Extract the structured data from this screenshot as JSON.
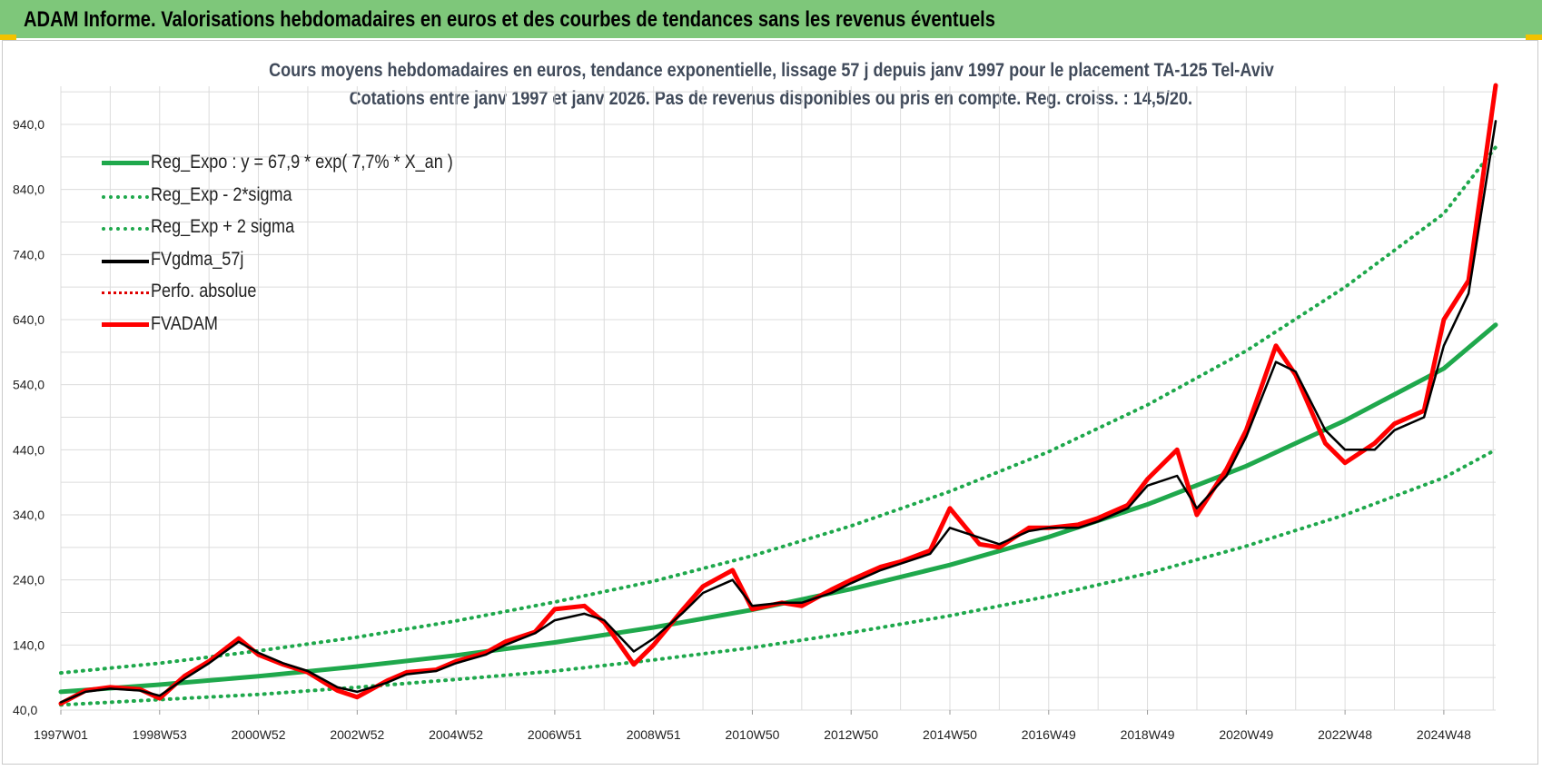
{
  "header": {
    "title": "ADAM Informe. Valorisations hebdomadaires en euros et des courbes de tendances sans les revenus éventuels"
  },
  "colors": {
    "header_bg": "#7ec77a",
    "reg_expo": "#1fa84c",
    "sigma": "#1fa84c",
    "smooth": "#000000",
    "perfo": "#e00000",
    "fvadam": "#ff0000",
    "grid": "#dcdcdc"
  },
  "chart_data": {
    "type": "line",
    "title": "Cours moyens hebdomadaires en euros, tendance exponentielle, lissage 57 j depuis janv 1997  pour le placement TA-125 Tel-Aviv",
    "subtitle": "Cotations entre janv 1997 et janv 2026. Pas de revenus disponibles ou pris en compte. Reg. croiss. : 14,5/20.",
    "xlabel": "",
    "ylabel": "",
    "ylim": [
      40,
      1000
    ],
    "xlim": [
      1997.0,
      2026.05
    ],
    "y_ticks": [
      "40,0",
      "140,0",
      "240,0",
      "340,0",
      "440,0",
      "540,0",
      "640,0",
      "740,0",
      "840,0",
      "940,0"
    ],
    "x_ticks": [
      {
        "label": "1997W01",
        "x": 1997.0
      },
      {
        "label": "1998W53",
        "x": 1999.0
      },
      {
        "label": "2000W52",
        "x": 2001.0
      },
      {
        "label": "2002W52",
        "x": 2003.0
      },
      {
        "label": "2004W52",
        "x": 2005.0
      },
      {
        "label": "2006W51",
        "x": 2007.0
      },
      {
        "label": "2008W51",
        "x": 2009.0
      },
      {
        "label": "2010W50",
        "x": 2011.0
      },
      {
        "label": "2012W50",
        "x": 2013.0
      },
      {
        "label": "2014W50",
        "x": 2015.0
      },
      {
        "label": "2016W49",
        "x": 2017.0
      },
      {
        "label": "2018W49",
        "x": 2019.0
      },
      {
        "label": "2020W49",
        "x": 2021.0
      },
      {
        "label": "2022W48",
        "x": 2023.0
      },
      {
        "label": "2024W48",
        "x": 2025.0
      }
    ],
    "grid": true,
    "legend_position": "top-left",
    "series": [
      {
        "name": "Reg_Expo : y = 67,9 * exp( 7,7% *  X_an )",
        "style": "solid-thick",
        "color": "#1fa84c",
        "x": [
          1997.0,
          1999.0,
          2001.0,
          2003.0,
          2005.0,
          2007.0,
          2009.0,
          2011.0,
          2013.0,
          2015.0,
          2017.0,
          2019.0,
          2021.0,
          2023.0,
          2025.0,
          2026.05
        ],
        "y": [
          68,
          79,
          92,
          107,
          124,
          144,
          167,
          194,
          226,
          263,
          306,
          356,
          415,
          485,
          565,
          632
        ]
      },
      {
        "name": "Reg_Exp - 2*sigma",
        "style": "dotted",
        "color": "#1fa84c",
        "x": [
          1997.0,
          1999.0,
          2001.0,
          2003.0,
          2005.0,
          2007.0,
          2009.0,
          2011.0,
          2013.0,
          2015.0,
          2017.0,
          2019.0,
          2021.0,
          2023.0,
          2025.0,
          2026.05
        ],
        "y": [
          48,
          56,
          64,
          75,
          87,
          100,
          117,
          136,
          159,
          185,
          215,
          250,
          292,
          340,
          397,
          440
        ]
      },
      {
        "name": "Reg_Exp + 2 sigma",
        "style": "dotted",
        "color": "#1fa84c",
        "x": [
          1997.0,
          1999.0,
          2001.0,
          2003.0,
          2005.0,
          2007.0,
          2009.0,
          2011.0,
          2013.0,
          2015.0,
          2017.0,
          2019.0,
          2021.0,
          2023.0,
          2025.0,
          2026.05
        ],
        "y": [
          97,
          112,
          131,
          152,
          177,
          206,
          238,
          277,
          323,
          376,
          437,
          509,
          592,
          690,
          803,
          905
        ]
      },
      {
        "name": "FVgdma_57j",
        "style": "solid",
        "color": "#000000",
        "x": [
          1997.0,
          1997.5,
          1998.0,
          1998.6,
          1999.0,
          1999.5,
          2000.0,
          2000.6,
          2001.0,
          2001.5,
          2002.0,
          2002.6,
          2003.0,
          2003.6,
          2004.0,
          2004.6,
          2005.0,
          2005.6,
          2006.0,
          2006.6,
          2007.0,
          2007.6,
          2008.0,
          2008.6,
          2009.0,
          2009.6,
          2010.0,
          2010.6,
          2011.0,
          2011.6,
          2012.0,
          2012.6,
          2013.0,
          2013.6,
          2014.0,
          2014.6,
          2015.0,
          2015.6,
          2016.0,
          2016.6,
          2017.0,
          2017.6,
          2018.0,
          2018.6,
          2019.0,
          2019.6,
          2020.0,
          2020.6,
          2021.0,
          2021.6,
          2022.0,
          2022.6,
          2023.0,
          2023.6,
          2024.0,
          2024.6,
          2025.0,
          2025.5,
          2026.05
        ],
        "y": [
          52,
          68,
          73,
          70,
          62,
          88,
          112,
          145,
          128,
          112,
          100,
          75,
          68,
          82,
          95,
          100,
          112,
          125,
          140,
          158,
          178,
          188,
          178,
          130,
          150,
          190,
          220,
          240,
          200,
          205,
          205,
          220,
          235,
          255,
          265,
          280,
          320,
          305,
          295,
          315,
          320,
          320,
          330,
          350,
          385,
          400,
          350,
          400,
          460,
          575,
          560,
          470,
          440,
          440,
          470,
          490,
          600,
          680,
          945
        ]
      },
      {
        "name": "Perfo. absolue",
        "style": "dotted",
        "color": "#e00000",
        "x": [],
        "y": []
      },
      {
        "name": "FVADAM",
        "style": "solid-thick",
        "color": "#ff0000",
        "x": [
          1997.0,
          1997.5,
          1998.0,
          1998.6,
          1999.0,
          1999.5,
          2000.0,
          2000.6,
          2001.0,
          2001.5,
          2002.0,
          2002.6,
          2003.0,
          2003.6,
          2004.0,
          2004.6,
          2005.0,
          2005.6,
          2006.0,
          2006.6,
          2007.0,
          2007.6,
          2008.0,
          2008.6,
          2009.0,
          2009.6,
          2010.0,
          2010.6,
          2011.0,
          2011.6,
          2012.0,
          2012.6,
          2013.0,
          2013.6,
          2014.0,
          2014.6,
          2015.0,
          2015.6,
          2016.0,
          2016.6,
          2017.0,
          2017.6,
          2018.0,
          2018.6,
          2019.0,
          2019.6,
          2020.0,
          2020.6,
          2021.0,
          2021.6,
          2022.0,
          2022.6,
          2023.0,
          2023.6,
          2024.0,
          2024.6,
          2025.0,
          2025.5,
          2026.05
        ],
        "y": [
          50,
          70,
          75,
          72,
          58,
          92,
          115,
          150,
          125,
          110,
          98,
          70,
          60,
          85,
          98,
          102,
          115,
          128,
          145,
          160,
          195,
          200,
          175,
          110,
          140,
          195,
          230,
          255,
          195,
          205,
          200,
          225,
          240,
          260,
          268,
          285,
          350,
          295,
          290,
          320,
          320,
          325,
          335,
          355,
          395,
          440,
          340,
          410,
          470,
          600,
          555,
          450,
          420,
          450,
          480,
          500,
          640,
          700,
          1000
        ]
      }
    ]
  }
}
